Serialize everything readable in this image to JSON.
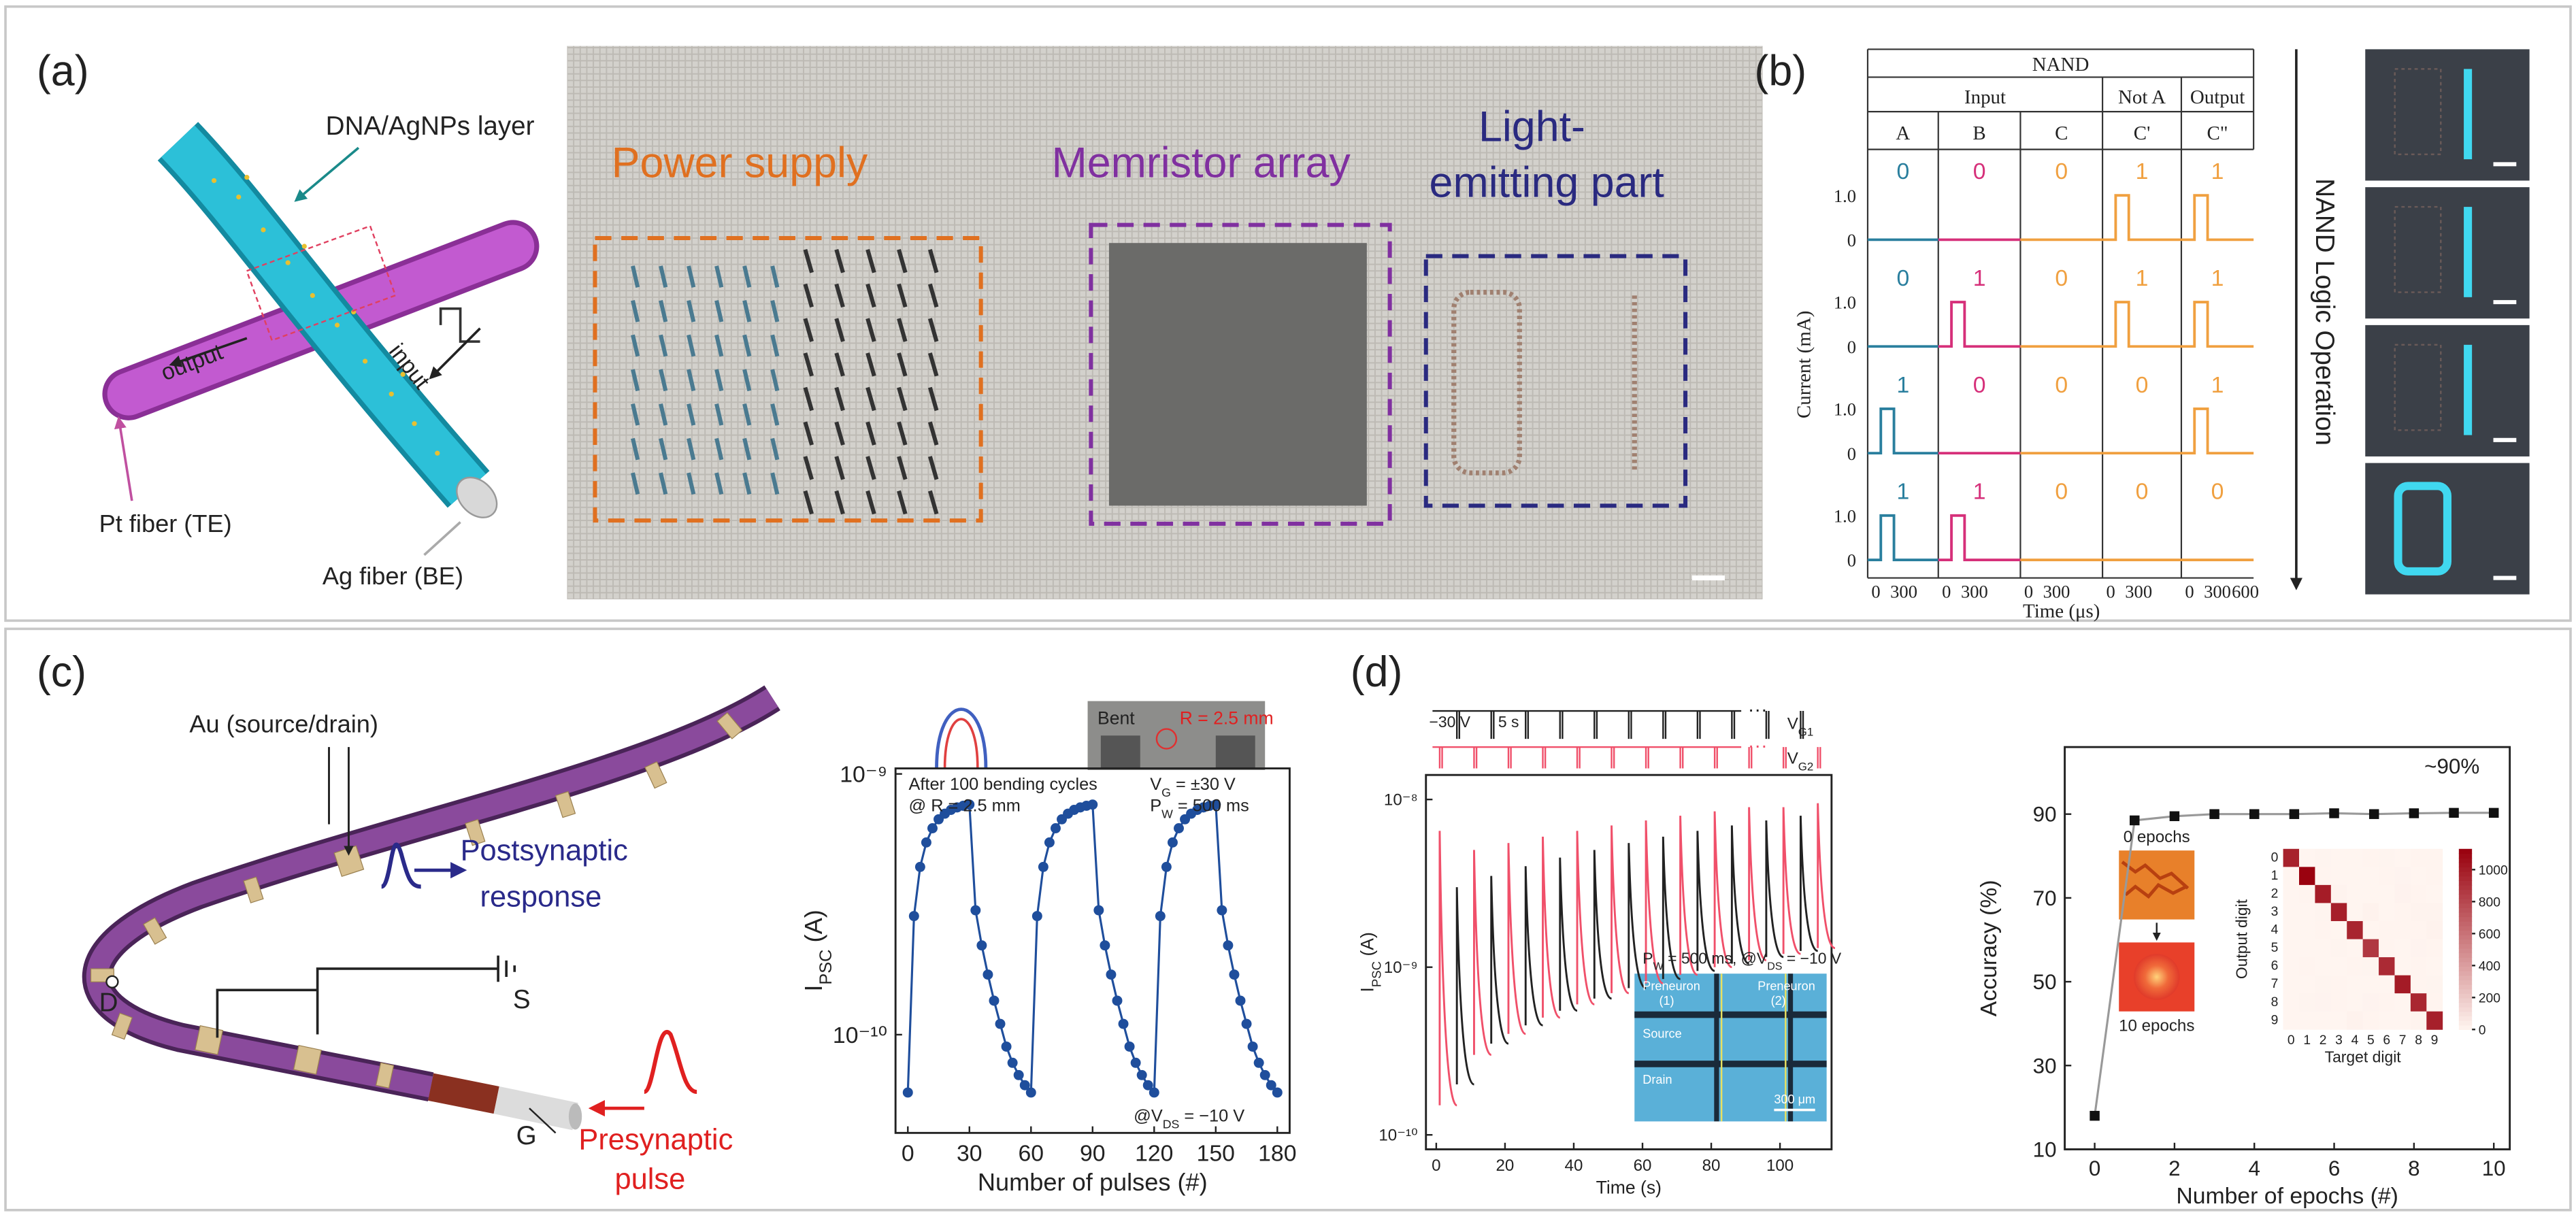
{
  "figure": {
    "panel_labels": [
      "(a)",
      "(b)",
      "(c)",
      "(d)"
    ],
    "a": {
      "dna": "DNA/AgNPs layer",
      "output": "output",
      "input": "input",
      "pt": "Pt fiber (TE)",
      "ag": "Ag fiber (BE)",
      "power": "Power supply",
      "memristor": "Memristor array",
      "light1": "Light-",
      "light2": "emitting part"
    },
    "b": {
      "title": "NAND",
      "input": "Input",
      "not_a": "Not A",
      "output": "Output",
      "columns": [
        "A",
        "B",
        "C",
        "C'",
        "C\""
      ],
      "rows": [
        [
          0,
          0,
          0,
          1,
          1
        ],
        [
          0,
          1,
          0,
          1,
          1
        ],
        [
          1,
          0,
          0,
          0,
          1
        ],
        [
          1,
          1,
          0,
          0,
          0
        ]
      ],
      "colors": [
        "#2a7f9e",
        "#d6307a",
        "#f0a040",
        "#f0a040",
        "#f0a040"
      ],
      "ylabel": "Current (mA)",
      "yticks": [
        "1.0",
        "0"
      ],
      "xticks": [
        "0",
        "300",
        "600"
      ],
      "xlabel": "Time (μs)",
      "side": "NAND Logic Operation"
    },
    "c": {
      "au": "Au (source/drain)",
      "post1": "Postsynaptic",
      "post2": "response",
      "s": "S",
      "d": "D",
      "g": "G",
      "pre1": "Presynaptic",
      "pre2": "pulse",
      "bent": "Bent",
      "radius": "R = 2.5 mm"
    }
  },
  "chart_data": [
    {
      "type": "line",
      "marker": "circle",
      "color": "#1f4e9c",
      "line_color": "#1f4e9c",
      "log_y": true,
      "xlabel": "Number of pulses (#)",
      "ylabel": [
        {
          "text": "I"
        },
        {
          "sub": "PSC"
        },
        {
          "text": " (A)"
        }
      ],
      "annotations": [
        [
          {
            "text": "After 100 bending cycles"
          }
        ],
        [
          {
            "text": "@ R = 2.5 mm"
          }
        ],
        [
          {
            "text": "V"
          },
          {
            "sub": "G"
          },
          {
            "text": " = ±30 V"
          }
        ],
        [
          {
            "text": "P"
          },
          {
            "sub": "W"
          },
          {
            "text": " = 500 ms"
          }
        ],
        [
          {
            "text": "@V"
          },
          {
            "sub": "DS"
          },
          {
            "text": " = −10 V"
          }
        ]
      ],
      "x": [
        0,
        3,
        6,
        9,
        12,
        15,
        18,
        21,
        24,
        27,
        30,
        33,
        36,
        39,
        42,
        45,
        48,
        51,
        54,
        57,
        60,
        63,
        66,
        69,
        72,
        75,
        78,
        81,
        84,
        87,
        90,
        93,
        96,
        99,
        102,
        105,
        108,
        111,
        114,
        117,
        120,
        123,
        126,
        129,
        132,
        135,
        138,
        141,
        144,
        147,
        150,
        153,
        156,
        159,
        162,
        165,
        168,
        171,
        174,
        177,
        180
      ],
      "values": [
        6e-11,
        2.85e-10,
        4.4e-10,
        5.46e-10,
        6.19e-10,
        6.7e-10,
        7.04e-10,
        7.28e-10,
        7.44e-10,
        7.55e-10,
        7.63e-10,
        3e-10,
        2.2e-10,
        1.7e-10,
        1.35e-10,
        1.1e-10,
        9e-11,
        7.8e-11,
        7e-11,
        6.4e-11,
        6e-11,
        2.85e-10,
        4.4e-10,
        5.46e-10,
        6.19e-10,
        6.7e-10,
        7.04e-10,
        7.28e-10,
        7.44e-10,
        7.55e-10,
        7.63e-10,
        3e-10,
        2.2e-10,
        1.7e-10,
        1.35e-10,
        1.1e-10,
        9e-11,
        7.8e-11,
        7e-11,
        6.4e-11,
        6e-11,
        2.85e-10,
        4.4e-10,
        5.46e-10,
        6.19e-10,
        6.7e-10,
        7.04e-10,
        7.28e-10,
        7.44e-10,
        7.55e-10,
        7.63e-10,
        3e-10,
        2.2e-10,
        1.7e-10,
        1.35e-10,
        1.1e-10,
        9e-11,
        7.8e-11,
        7e-11,
        6.4e-11,
        6e-11
      ],
      "xlim": [
        -6,
        186
      ],
      "xticks": [
        0,
        30,
        60,
        90,
        120,
        150,
        180
      ],
      "ylim": [
        4.2e-11,
        1.05e-09
      ],
      "yticks": [
        {
          "value": 1e-10,
          "label": "10⁻¹⁰"
        },
        {
          "value": 1e-09,
          "label": "10⁻⁹"
        }
      ]
    },
    {
      "type": "spikes",
      "log_y": true,
      "xlabel": "Time (s)",
      "ylabel": [
        {
          "text": "I"
        },
        {
          "sub": "PSC"
        },
        {
          "text": " (A)"
        }
      ],
      "gate_voltage": "−30 V",
      "period": "5 s",
      "ellipsis": "···",
      "annotations": [
        [
          {
            "text": "P"
          },
          {
            "sub": "W"
          },
          {
            "text": " = 500 ms, @V"
          },
          {
            "sub": "DS"
          },
          {
            "text": " = −10 V"
          }
        ]
      ],
      "inset_labels": [
        "Preneuron",
        "(1)",
        "Preneuron",
        "(2)",
        "Source",
        "Drain",
        "300 μm"
      ],
      "series": [
        {
          "name": [
            {
              "text": "V"
            },
            {
              "sub": "G1"
            }
          ],
          "color": "#222222",
          "x": [
            6,
            16,
            26,
            36,
            46,
            56,
            66,
            76,
            86,
            96,
            106
          ],
          "values": [
            3e-09,
            3.5e-09,
            4e-09,
            4.5e-09,
            5e-09,
            5.5e-09,
            6e-09,
            6.5e-09,
            7e-09,
            7.5e-09,
            8e-09
          ],
          "minima": [
            2e-10,
            3.5e-10,
            4.5e-10,
            5.5e-10,
            6.5e-10,
            7.5e-10,
            8.5e-10,
            9.5e-10,
            1.05e-09,
            1.15e-09,
            1.25e-09
          ]
        },
        {
          "name": [
            {
              "text": "V"
            },
            {
              "sub": "G2"
            }
          ],
          "color": "#f0506a",
          "x": [
            1,
            11,
            21,
            31,
            41,
            51,
            61,
            71,
            81,
            91,
            101,
            111
          ],
          "values": [
            6.5e-09,
            5e-09,
            5.5e-09,
            6e-09,
            6.5e-09,
            7e-09,
            7.5e-09,
            8e-09,
            8.5e-09,
            9e-09,
            9e-09,
            9.5e-09
          ],
          "minima": [
            1.5e-10,
            3e-10,
            4e-10,
            5e-10,
            6e-10,
            7e-10,
            8e-10,
            9e-10,
            1e-09,
            1.1e-09,
            1.2e-09,
            1.3e-09
          ]
        }
      ],
      "xlim": [
        -3,
        115
      ],
      "xticks": [
        0,
        20,
        40,
        60,
        80,
        100
      ],
      "ylim": [
        8.2e-11,
        1.4e-08
      ],
      "yticks": [
        {
          "value": 1e-10,
          "label": "10⁻¹⁰"
        },
        {
          "value": 1e-09,
          "label": "10⁻⁹"
        },
        {
          "value": 1e-08,
          "label": "10⁻⁸"
        }
      ]
    },
    {
      "type": "line",
      "marker": "square",
      "color": "#111111",
      "line_color": "#999999",
      "xlabel": "Number of epochs (#)",
      "ylabel": "Accuracy (%)",
      "annotation": "~90%",
      "inset_labels": [
        "0 epochs",
        "10 epochs"
      ],
      "x": [
        0,
        1,
        2,
        3,
        4,
        5,
        6,
        7,
        8,
        9,
        10
      ],
      "values": [
        18,
        88.5,
        89.5,
        90,
        90,
        90,
        90.2,
        90,
        90.2,
        90.3,
        90.3
      ],
      "xlim": [
        -0.75,
        10.4
      ],
      "xticks": [
        0,
        2,
        4,
        6,
        8,
        10
      ],
      "ylim": [
        10,
        106
      ],
      "yticks": [
        10,
        30,
        50,
        70,
        90
      ]
    },
    {
      "type": "heatmap",
      "xlabel": "Target digit",
      "ylabel": "Output digit",
      "categories": [
        0,
        1,
        2,
        3,
        4,
        5,
        6,
        7,
        8,
        9
      ],
      "values": [
        [
          975,
          0,
          6,
          1,
          1,
          5,
          6,
          1,
          5,
          4
        ],
        [
          0,
          1120,
          4,
          0,
          1,
          1,
          3,
          7,
          2,
          5
        ],
        [
          1,
          3,
          1000,
          10,
          2,
          1,
          1,
          12,
          4,
          1
        ],
        [
          0,
          2,
          6,
          985,
          0,
          15,
          0,
          3,
          10,
          8
        ],
        [
          0,
          0,
          4,
          0,
          960,
          2,
          4,
          3,
          5,
          14
        ],
        [
          1,
          1,
          0,
          6,
          0,
          870,
          4,
          0,
          7,
          3
        ],
        [
          2,
          3,
          2,
          0,
          5,
          6,
          935,
          0,
          4,
          1
        ],
        [
          1,
          0,
          6,
          4,
          1,
          1,
          0,
          1005,
          4,
          6
        ],
        [
          0,
          6,
          7,
          3,
          2,
          7,
          5,
          2,
          950,
          4
        ],
        [
          0,
          0,
          2,
          1,
          13,
          4,
          0,
          1,
          8,
          983
        ]
      ],
      "colors": [
        "#fff5f0",
        "#99000d"
      ],
      "zlim": [
        0,
        1130
      ],
      "zticks": [
        0,
        200,
        400,
        600,
        800,
        1000
      ]
    }
  ]
}
